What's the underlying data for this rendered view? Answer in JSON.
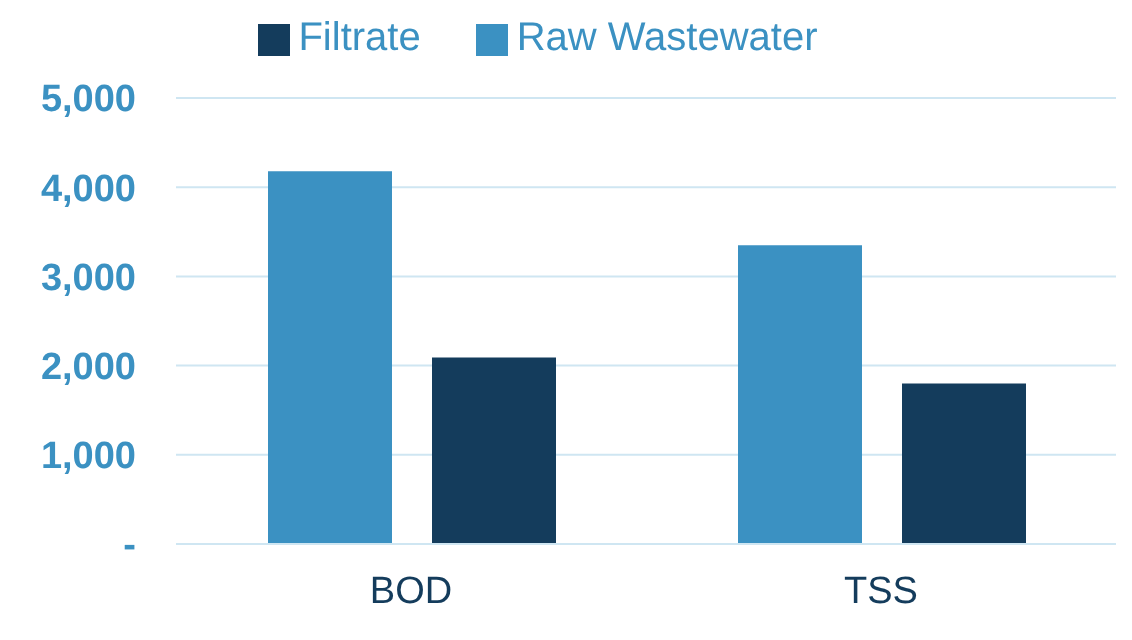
{
  "chart_data": {
    "type": "bar",
    "categories": [
      "BOD",
      "TSS"
    ],
    "series": [
      {
        "name": "Raw Wastewater",
        "color": "#3b91c2",
        "values": [
          4180,
          3350
        ]
      },
      {
        "name": "Filtrate",
        "color": "#143c5c",
        "values": [
          2090,
          1800
        ]
      }
    ],
    "ylim": [
      0,
      5000
    ],
    "yticks": [
      {
        "value": 0,
        "label": "-"
      },
      {
        "value": 1000,
        "label": "1,000"
      },
      {
        "value": 2000,
        "label": "2,000"
      },
      {
        "value": 3000,
        "label": "3,000"
      },
      {
        "value": 4000,
        "label": "4,000"
      },
      {
        "value": 5000,
        "label": "5,000"
      }
    ],
    "grid": "y",
    "legend": "top"
  }
}
